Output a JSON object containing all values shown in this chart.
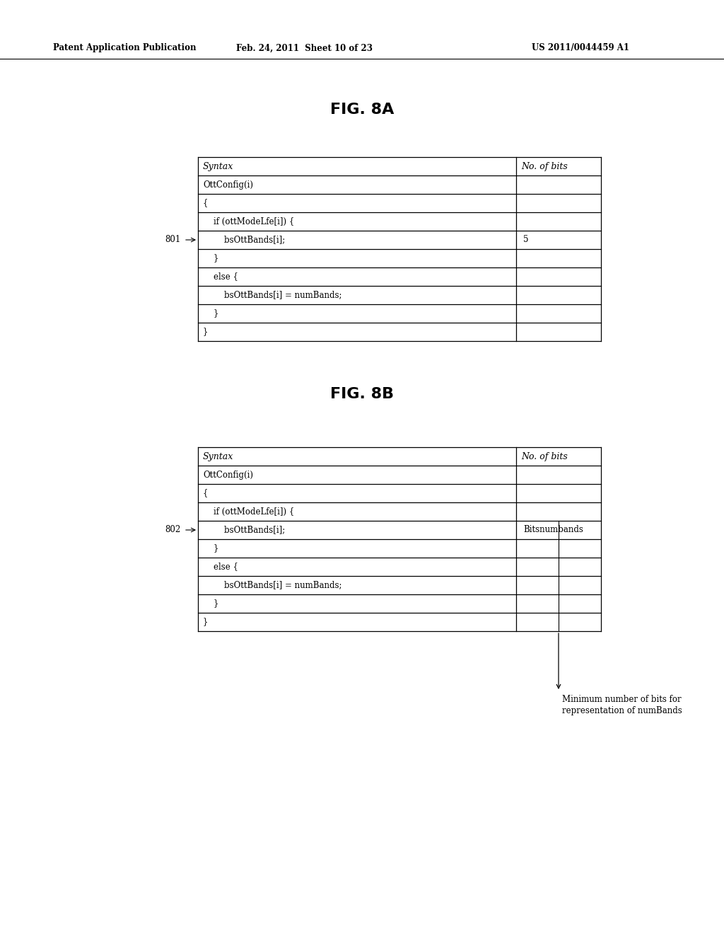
{
  "header_left": "Patent Application Publication",
  "header_mid": "Feb. 24, 2011  Sheet 10 of 23",
  "header_right": "US 2011/0044459 A1",
  "fig8a_title": "FIG. 8A",
  "fig8b_title": "FIG. 8B",
  "table_col1_header": "Syntax",
  "table_col2_header": "No. of bits",
  "table8a_rows": [
    [
      "OttConfig(i)",
      ""
    ],
    [
      "{",
      ""
    ],
    [
      "    if (ottModeLfe[i]) {",
      ""
    ],
    [
      "        bsOttBands[i];",
      "5"
    ],
    [
      "    }",
      ""
    ],
    [
      "    else {",
      ""
    ],
    [
      "        bsOttBands[i] = numBands;",
      ""
    ],
    [
      "    }",
      ""
    ],
    [
      "}",
      ""
    ]
  ],
  "table8b_rows": [
    [
      "OttConfig(i)",
      ""
    ],
    [
      "{",
      ""
    ],
    [
      "    if (ottModeLfe[i]) {",
      ""
    ],
    [
      "        bsOttBands[i];",
      "Bitsnumbands"
    ],
    [
      "    }",
      ""
    ],
    [
      "    else {",
      ""
    ],
    [
      "        bsOttBands[i] = numBands;",
      ""
    ],
    [
      "    }",
      ""
    ],
    [
      "}",
      ""
    ]
  ],
  "label_801": "801",
  "label_802": "802",
  "annotation_text_line1": "Minimum number of bits for",
  "annotation_text_line2": "representation of numBands",
  "bg_color": "#ffffff",
  "text_color": "#000000"
}
